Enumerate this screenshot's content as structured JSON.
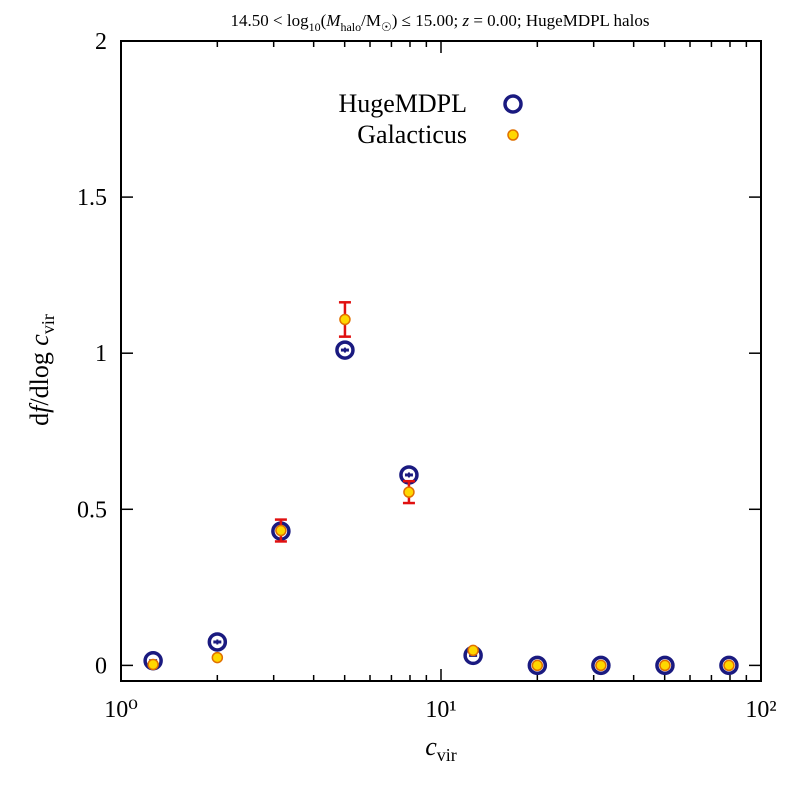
{
  "chart_data": {
    "type": "scatter",
    "title": "14.50 < log₁₀(M_halo/M☉) ≤ 15.00; z = 0.00; HugeMDPL halos",
    "xlabel": "c_vir",
    "ylabel": "df/dlog c_vir",
    "xscale": "log",
    "xlim": [
      1,
      100
    ],
    "ylim": [
      -0.05,
      2
    ],
    "x_ticks": [
      {
        "value": 1,
        "label": "10⁰"
      },
      {
        "value": 10,
        "label": "10¹"
      },
      {
        "value": 100,
        "label": "10²"
      }
    ],
    "y_ticks": [
      {
        "value": 0,
        "label": "0"
      },
      {
        "value": 0.5,
        "label": "0.5"
      },
      {
        "value": 1,
        "label": "1"
      },
      {
        "value": 1.5,
        "label": "1.5"
      },
      {
        "value": 2,
        "label": "2"
      }
    ],
    "legend_position": "top-center",
    "grid": false,
    "series": [
      {
        "name": "HugeMDPL",
        "marker": "open-circle",
        "color": "#1a1a80",
        "points": [
          {
            "x": 1.26,
            "y": 0.015,
            "err": 0.003
          },
          {
            "x": 2.0,
            "y": 0.075,
            "err": 0.008
          },
          {
            "x": 3.16,
            "y": 0.43,
            "err": 0.01
          },
          {
            "x": 5.01,
            "y": 1.01,
            "err": 0.008
          },
          {
            "x": 7.94,
            "y": 0.61,
            "err": 0.008
          },
          {
            "x": 12.6,
            "y": 0.032,
            "err": 0.004
          },
          {
            "x": 20.0,
            "y": 0.0,
            "err": 0.0
          },
          {
            "x": 31.6,
            "y": 0.0,
            "err": 0.0
          },
          {
            "x": 50.1,
            "y": 0.0,
            "err": 0.0
          },
          {
            "x": 79.4,
            "y": 0.0,
            "err": 0.0
          }
        ]
      },
      {
        "name": "Galacticus",
        "marker": "filled-circle",
        "color": "#ffd700",
        "edge_color": "#e07000",
        "error_color": "#e01010",
        "points": [
          {
            "x": 1.26,
            "y": 0.003,
            "err": 0.003
          },
          {
            "x": 2.0,
            "y": 0.025,
            "err": 0.006
          },
          {
            "x": 3.16,
            "y": 0.432,
            "err": 0.035
          },
          {
            "x": 5.01,
            "y": 1.108,
            "err": 0.055
          },
          {
            "x": 7.94,
            "y": 0.555,
            "err": 0.035
          },
          {
            "x": 12.6,
            "y": 0.048,
            "err": 0.006
          },
          {
            "x": 20.0,
            "y": 0.0,
            "err": 0.0
          },
          {
            "x": 31.6,
            "y": 0.0,
            "err": 0.0
          },
          {
            "x": 50.1,
            "y": 0.0,
            "err": 0.0
          },
          {
            "x": 79.4,
            "y": 0.0,
            "err": 0.0
          }
        ]
      }
    ]
  }
}
